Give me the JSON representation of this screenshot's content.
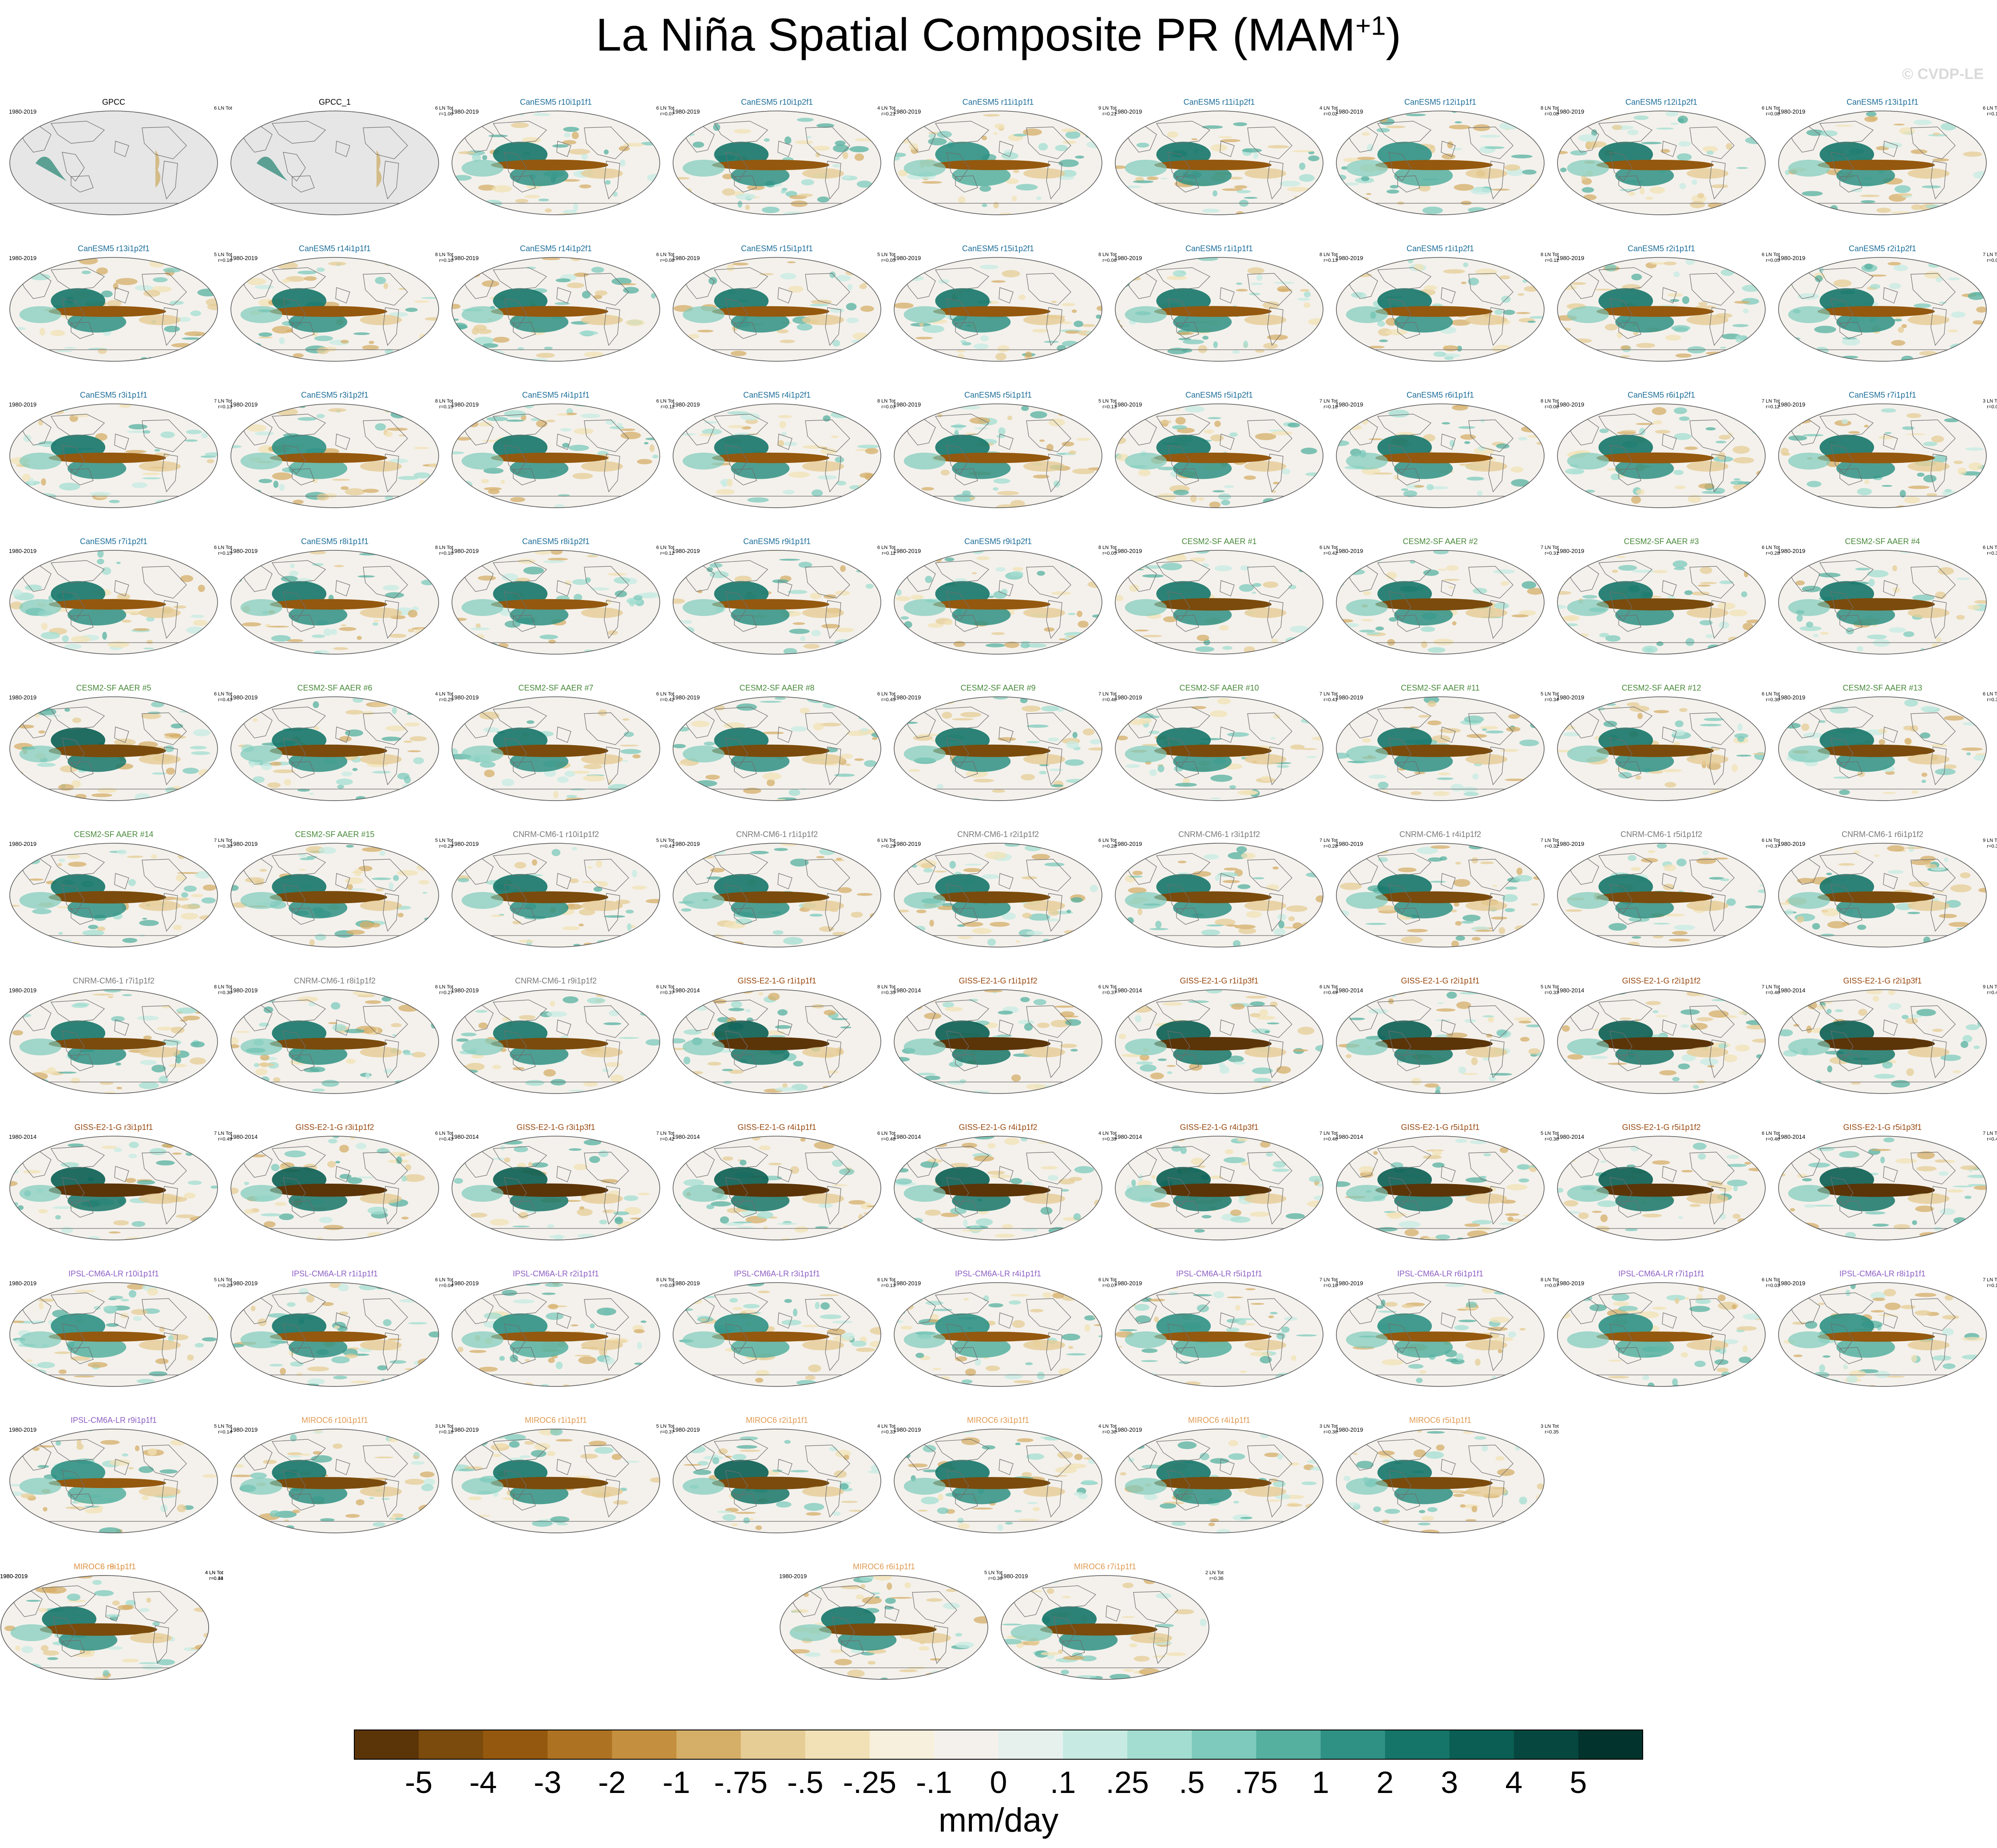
{
  "title": {
    "main": "La Niña Spatial Composite PR (MAM",
    "superscript": "+1",
    "close": ")"
  },
  "watermark": "© CVDP-LE",
  "group_colors": {
    "obs": "#000000",
    "CanESM5": "#1f6f9a",
    "CESM2-SF AAER": "#4a8a3c",
    "CNRM-CM6-1": "#7a7a7a",
    "GISS-E2-1-G": "#9a4a12",
    "IPSL-CM6A-LR": "#8e5fc4",
    "MIROC6": "#e09a52"
  },
  "chart_data": {
    "type": "heatmap",
    "title": "La Niña Spatial Composite PR (MAM+1)",
    "field": "precipitation composite anomaly",
    "projection": "global ellipse",
    "colorbar": {
      "unit": "mm/day",
      "tick_labels": [
        "-5",
        "-4",
        "-3",
        "-2",
        "-1",
        "-.75",
        "-.5",
        "-.25",
        "-.1",
        "0",
        ".1",
        ".25",
        ".5",
        ".75",
        "1",
        "2",
        "3",
        "4",
        "5"
      ],
      "colors": [
        "#5b3408",
        "#7a4b0c",
        "#94580e",
        "#ad7222",
        "#c48f3e",
        "#d5ae68",
        "#e6cc95",
        "#f2e1b6",
        "#f6f0dc",
        "#f4f1ec",
        "#e6f1ee",
        "#c7ebe3",
        "#a3ddd1",
        "#7ecabc",
        "#55b0a0",
        "#2f9184",
        "#167569",
        "#0a5e53",
        "#06473f",
        "#02332c"
      ]
    },
    "panels": [
      {
        "title": "GPCC",
        "group": "obs",
        "period": "1980-2019",
        "events": "6 LN Tot",
        "r": "",
        "enso": 0
      },
      {
        "title": "GPCC_1",
        "group": "obs",
        "period": "",
        "events": "6 LN Tot",
        "r": "r=1.00",
        "enso": 0
      },
      {
        "title": "CanESM5 r10i1p1f1",
        "group": "CanESM5",
        "period": "1980-2019",
        "events": "6 LN Tot",
        "r": "r=0.07",
        "enso": 0.55
      },
      {
        "title": "CanESM5 r10i1p2f1",
        "group": "CanESM5",
        "period": "1980-2019",
        "events": "4 LN Tot",
        "r": "r=0.21",
        "enso": 0.5
      },
      {
        "title": "CanESM5 r11i1p1f1",
        "group": "CanESM5",
        "period": "1980-2019",
        "events": "9 LN Tot",
        "r": "r=0.21",
        "enso": 0.45
      },
      {
        "title": "CanESM5 r11i1p2f1",
        "group": "CanESM5",
        "period": "1980-2019",
        "events": "4 LN Tot",
        "r": "r=0.02",
        "enso": 0.5
      },
      {
        "title": "CanESM5 r12i1p1f1",
        "group": "CanESM5",
        "period": "1980-2019",
        "events": "8 LN Tot",
        "r": "r=0.08",
        "enso": 0.45
      },
      {
        "title": "CanESM5 r12i1p2f1",
        "group": "CanESM5",
        "period": "1980-2019",
        "events": "6 LN Tot",
        "r": "r=0.08",
        "enso": 0.5
      },
      {
        "title": "CanESM5 r13i1p1f1",
        "group": "CanESM5",
        "period": "1980-2019",
        "events": "6 LN Tot",
        "r": "r=0.16",
        "enso": 0.5
      },
      {
        "title": "CanESM5 r13i1p2f1",
        "group": "CanESM5",
        "period": "1980-2019",
        "events": "5 LN Tot",
        "r": "r=0.16",
        "enso": 0.55
      },
      {
        "title": "CanESM5 r14i1p1f1",
        "group": "CanESM5",
        "period": "1980-2019",
        "events": "8 LN Tot",
        "r": "r=0.10",
        "enso": 0.55
      },
      {
        "title": "CanESM5 r14i1p2f1",
        "group": "CanESM5",
        "period": "1980-2019",
        "events": "6 LN Tot",
        "r": "r=0.08",
        "enso": 0.55
      },
      {
        "title": "CanESM5 r15i1p1f1",
        "group": "CanESM5",
        "period": "1980-2019",
        "events": "5 LN Tot",
        "r": "r=0.05",
        "enso": 0.5
      },
      {
        "title": "CanESM5 r15i1p2f1",
        "group": "CanESM5",
        "period": "1980-2019",
        "events": "8 LN Tot",
        "r": "r=0.06",
        "enso": 0.5
      },
      {
        "title": "CanESM5 r1i1p1f1",
        "group": "CanESM5",
        "period": "1980-2019",
        "events": "8 LN Tot",
        "r": "r=0.13",
        "enso": 0.55
      },
      {
        "title": "CanESM5 r1i1p2f1",
        "group": "CanESM5",
        "period": "1980-2019",
        "events": "8 LN Tot",
        "r": "r=0.11",
        "enso": 0.55
      },
      {
        "title": "CanESM5 r2i1p1f1",
        "group": "CanESM5",
        "period": "1980-2019",
        "events": "6 LN Tot",
        "r": "r=0.05",
        "enso": 0.55
      },
      {
        "title": "CanESM5 r2i1p2f1",
        "group": "CanESM5",
        "period": "1980-2019",
        "events": "7 LN Tot",
        "r": "r=0.06",
        "enso": 0.55
      },
      {
        "title": "CanESM5 r3i1p1f1",
        "group": "CanESM5",
        "period": "1980-2019",
        "events": "7 LN Tot",
        "r": "r=0.13",
        "enso": 0.5
      },
      {
        "title": "CanESM5 r3i1p2f1",
        "group": "CanESM5",
        "period": "1980-2019",
        "events": "8 LN Tot",
        "r": "r=0.15",
        "enso": 0.45
      },
      {
        "title": "CanESM5 r4i1p1f1",
        "group": "CanESM5",
        "period": "1980-2019",
        "events": "6 LN Tot",
        "r": "r=0.11",
        "enso": 0.5
      },
      {
        "title": "CanESM5 r4i1p2f1",
        "group": "CanESM5",
        "period": "1980-2019",
        "events": "8 LN Tot",
        "r": "r=0.03",
        "enso": 0.5
      },
      {
        "title": "CanESM5 r5i1p1f1",
        "group": "CanESM5",
        "period": "1980-2019",
        "events": "5 LN Tot",
        "r": "r=0.13",
        "enso": 0.5
      },
      {
        "title": "CanESM5 r5i1p2f1",
        "group": "CanESM5",
        "period": "1980-2019",
        "events": "7 LN Tot",
        "r": "r=0.18",
        "enso": 0.5
      },
      {
        "title": "CanESM5 r6i1p1f1",
        "group": "CanESM5",
        "period": "1980-2019",
        "events": "8 LN Tot",
        "r": "r=0.08",
        "enso": 0.55
      },
      {
        "title": "CanESM5 r6i1p2f1",
        "group": "CanESM5",
        "period": "1980-2019",
        "events": "7 LN Tot",
        "r": "r=0.12",
        "enso": 0.55
      },
      {
        "title": "CanESM5 r7i1p1f1",
        "group": "CanESM5",
        "period": "1980-2019",
        "events": "3 LN Tot",
        "r": "r=0.08",
        "enso": 0.55
      },
      {
        "title": "CanESM5 r7i1p2f1",
        "group": "CanESM5",
        "period": "1980-2019",
        "events": "6 LN Tot",
        "r": "r=0.15",
        "enso": 0.5
      },
      {
        "title": "CanESM5 r8i1p1f1",
        "group": "CanESM5",
        "period": "1980-2019",
        "events": "8 LN Tot",
        "r": "r=0.10",
        "enso": 0.5
      },
      {
        "title": "CanESM5 r8i1p2f1",
        "group": "CanESM5",
        "period": "1980-2019",
        "events": "6 LN Tot",
        "r": "r=0.12",
        "enso": 0.5
      },
      {
        "title": "CanESM5 r9i1p1f1",
        "group": "CanESM5",
        "period": "1980-2019",
        "events": "6 LN Tot",
        "r": "r=0.11",
        "enso": 0.5
      },
      {
        "title": "CanESM5 r9i1p2f1",
        "group": "CanESM5",
        "period": "1980-2019",
        "events": "8 LN Tot",
        "r": "r=0.05",
        "enso": 0.5
      },
      {
        "title": "CESM2-SF AAER #1",
        "group": "CESM2-SF AAER",
        "period": "1980-2019",
        "events": "6 LN Tot",
        "r": "r=0.42",
        "enso": 0.8
      },
      {
        "title": "CESM2-SF AAER #2",
        "group": "CESM2-SF AAER",
        "period": "1980-2019",
        "events": "7 LN Tot",
        "r": "r=0.31",
        "enso": 0.75
      },
      {
        "title": "CESM2-SF AAER #3",
        "group": "CESM2-SF AAER",
        "period": "1980-2019",
        "events": "6 LN Tot",
        "r": "r=0.28",
        "enso": 0.75
      },
      {
        "title": "CESM2-SF AAER #4",
        "group": "CESM2-SF AAER",
        "period": "1980-2019",
        "events": "6 LN Tot",
        "r": "r=0.38",
        "enso": 0.8
      },
      {
        "title": "CESM2-SF AAER #5",
        "group": "CESM2-SF AAER",
        "period": "1980-2019",
        "events": "6 LN Tot",
        "r": "r=0.43",
        "enso": 0.85
      },
      {
        "title": "CESM2-SF AAER #6",
        "group": "CESM2-SF AAER",
        "period": "1980-2019",
        "events": "4 LN Tot",
        "r": "r=0.25",
        "enso": 0.8
      },
      {
        "title": "CESM2-SF AAER #7",
        "group": "CESM2-SF AAER",
        "period": "1980-2019",
        "events": "6 LN Tot",
        "r": "r=0.42",
        "enso": 0.8
      },
      {
        "title": "CESM2-SF AAER #8",
        "group": "CESM2-SF AAER",
        "period": "1980-2019",
        "events": "6 LN Tot",
        "r": "r=0.45",
        "enso": 0.8
      },
      {
        "title": "CESM2-SF AAER #9",
        "group": "CESM2-SF AAER",
        "period": "1980-2019",
        "events": "7 LN Tot",
        "r": "r=0.46",
        "enso": 0.8
      },
      {
        "title": "CESM2-SF AAER #10",
        "group": "CESM2-SF AAER",
        "period": "1980-2019",
        "events": "7 LN Tot",
        "r": "r=0.41",
        "enso": 0.8
      },
      {
        "title": "CESM2-SF AAER #11",
        "group": "CESM2-SF AAER",
        "period": "1980-2019",
        "events": "5 LN Tot",
        "r": "r=0.34",
        "enso": 0.8
      },
      {
        "title": "CESM2-SF AAER #12",
        "group": "CESM2-SF AAER",
        "period": "1980-2019",
        "events": "6 LN Tot",
        "r": "r=0.30",
        "enso": 0.8
      },
      {
        "title": "CESM2-SF AAER #13",
        "group": "CESM2-SF AAER",
        "period": "1980-2019",
        "events": "6 LN Tot",
        "r": "r=0.39",
        "enso": 0.8
      },
      {
        "title": "CESM2-SF AAER #14",
        "group": "CESM2-SF AAER",
        "period": "1980-2019",
        "events": "7 LN Tot",
        "r": "r=0.30",
        "enso": 0.8
      },
      {
        "title": "CESM2-SF AAER #15",
        "group": "CESM2-SF AAER",
        "period": "1980-2019",
        "events": "5 LN Tot",
        "r": "r=0.29",
        "enso": 0.8
      },
      {
        "title": "CNRM-CM6-1 r10i1p1f2",
        "group": "CNRM-CM6-1",
        "period": "1980-2019",
        "events": "5 LN Tot",
        "r": "r=0.41",
        "enso": 0.7
      },
      {
        "title": "CNRM-CM6-1 r1i1p1f2",
        "group": "CNRM-CM6-1",
        "period": "1980-2019",
        "events": "6 LN Tot",
        "r": "r=0.29",
        "enso": 0.7
      },
      {
        "title": "CNRM-CM6-1 r2i1p1f2",
        "group": "CNRM-CM6-1",
        "period": "1980-2019",
        "events": "6 LN Tot",
        "r": "r=0.28",
        "enso": 0.7
      },
      {
        "title": "CNRM-CM6-1 r3i1p1f2",
        "group": "CNRM-CM6-1",
        "period": "1980-2019",
        "events": "7 LN Tot",
        "r": "r=0.28",
        "enso": 0.7
      },
      {
        "title": "CNRM-CM6-1 r4i1p1f2",
        "group": "CNRM-CM6-1",
        "period": "1980-2019",
        "events": "7 LN Tot",
        "r": "r=0.32",
        "enso": 0.7
      },
      {
        "title": "CNRM-CM6-1 r5i1p1f2",
        "group": "CNRM-CM6-1",
        "period": "1980-2019",
        "events": "6 LN Tot",
        "r": "r=0.37",
        "enso": 0.7
      },
      {
        "title": "CNRM-CM6-1 r6i1p1f2",
        "group": "CNRM-CM6-1",
        "period": "1980-2019",
        "events": "9 LN Tot",
        "r": "r=0.38",
        "enso": 0.7
      },
      {
        "title": "CNRM-CM6-1 r7i1p1f2",
        "group": "CNRM-CM6-1",
        "period": "1980-2019",
        "events": "8 LN Tot",
        "r": "r=0.30",
        "enso": 0.7
      },
      {
        "title": "CNRM-CM6-1 r8i1p1f2",
        "group": "CNRM-CM6-1",
        "period": "1980-2019",
        "events": "6 LN Tot",
        "r": "r=0.27",
        "enso": 0.7
      },
      {
        "title": "CNRM-CM6-1 r9i1p1f2",
        "group": "CNRM-CM6-1",
        "period": "1980-2019",
        "events": "6 LN Tot",
        "r": "r=0.37",
        "enso": 0.7
      },
      {
        "title": "GISS-E2-1-G r1i1p1f1",
        "group": "GISS-E2-1-G",
        "period": "1980-2014",
        "events": "8 LN Tot",
        "r": "r=0.35",
        "enso": 0.9
      },
      {
        "title": "GISS-E2-1-G r1i1p1f2",
        "group": "GISS-E2-1-G",
        "period": "1980-2014",
        "events": "6 LN Tot",
        "r": "r=0.37",
        "enso": 0.9
      },
      {
        "title": "GISS-E2-1-G r1i1p3f1",
        "group": "GISS-E2-1-G",
        "period": "1980-2014",
        "events": "6 LN Tot",
        "r": "r=0.49",
        "enso": 0.95
      },
      {
        "title": "GISS-E2-1-G r2i1p1f1",
        "group": "GISS-E2-1-G",
        "period": "1980-2014",
        "events": "5 LN Tot",
        "r": "r=0.33",
        "enso": 0.9
      },
      {
        "title": "GISS-E2-1-G r2i1p1f2",
        "group": "GISS-E2-1-G",
        "period": "1980-2014",
        "events": "7 LN Tot",
        "r": "r=0.46",
        "enso": 0.9
      },
      {
        "title": "GISS-E2-1-G r2i1p3f1",
        "group": "GISS-E2-1-G",
        "period": "1980-2014",
        "events": "9 LN Tot",
        "r": "r=0.47",
        "enso": 0.9
      },
      {
        "title": "GISS-E2-1-G r3i1p1f1",
        "group": "GISS-E2-1-G",
        "period": "1980-2014",
        "events": "7 LN Tot",
        "r": "r=0.49",
        "enso": 0.95
      },
      {
        "title": "GISS-E2-1-G r3i1p1f2",
        "group": "GISS-E2-1-G",
        "period": "1980-2014",
        "events": "6 LN Tot",
        "r": "r=0.43",
        "enso": 0.9
      },
      {
        "title": "GISS-E2-1-G r3i1p3f1",
        "group": "GISS-E2-1-G",
        "period": "1980-2014",
        "events": "7 LN Tot",
        "r": "r=0.42",
        "enso": 0.95
      },
      {
        "title": "GISS-E2-1-G r4i1p1f1",
        "group": "GISS-E2-1-G",
        "period": "1980-2014",
        "events": "6 LN Tot",
        "r": "r=0.48",
        "enso": 0.95
      },
      {
        "title": "GISS-E2-1-G r4i1p1f2",
        "group": "GISS-E2-1-G",
        "period": "1980-2014",
        "events": "4 LN Tot",
        "r": "r=0.39",
        "enso": 0.9
      },
      {
        "title": "GISS-E2-1-G r4i1p3f1",
        "group": "GISS-E2-1-G",
        "period": "1980-2014",
        "events": "7 LN Tot",
        "r": "r=0.46",
        "enso": 0.95
      },
      {
        "title": "GISS-E2-1-G r5i1p1f1",
        "group": "GISS-E2-1-G",
        "period": "1980-2014",
        "events": "5 LN Tot",
        "r": "r=0.36",
        "enso": 0.9
      },
      {
        "title": "GISS-E2-1-G r5i1p1f2",
        "group": "GISS-E2-1-G",
        "period": "1980-2014",
        "events": "6 LN Tot",
        "r": "r=0.46",
        "enso": 0.9
      },
      {
        "title": "GISS-E2-1-G r5i1p3f1",
        "group": "GISS-E2-1-G",
        "period": "1980-2014",
        "events": "7 LN Tot",
        "r": "r=0.47",
        "enso": 0.95
      },
      {
        "title": "IPSL-CM6A-LR r10i1p1f1",
        "group": "IPSL-CM6A-LR",
        "period": "1980-2019",
        "events": "5 LN Tot",
        "r": "r=0.20",
        "enso": 0.45
      },
      {
        "title": "IPSL-CM6A-LR r1i1p1f1",
        "group": "IPSL-CM6A-LR",
        "period": "1980-2019",
        "events": "6 LN Tot",
        "r": "r=0.04",
        "enso": 0.5
      },
      {
        "title": "IPSL-CM6A-LR r2i1p1f1",
        "group": "IPSL-CM6A-LR",
        "period": "1980-2019",
        "events": "8 LN Tot",
        "r": "r=0.03",
        "enso": 0.4
      },
      {
        "title": "IPSL-CM6A-LR r3i1p1f1",
        "group": "IPSL-CM6A-LR",
        "period": "1980-2019",
        "events": "6 LN Tot",
        "r": "r=0.13",
        "enso": 0.45
      },
      {
        "title": "IPSL-CM6A-LR r4i1p1f1",
        "group": "IPSL-CM6A-LR",
        "period": "1980-2019",
        "events": "6 LN Tot",
        "r": "r=0.07",
        "enso": 0.4
      },
      {
        "title": "IPSL-CM6A-LR r5i1p1f1",
        "group": "IPSL-CM6A-LR",
        "period": "1980-2019",
        "events": "7 LN Tot",
        "r": "r=0.10",
        "enso": 0.45
      },
      {
        "title": "IPSL-CM6A-LR r6i1p1f1",
        "group": "IPSL-CM6A-LR",
        "period": "1980-2019",
        "events": "8 LN Tot",
        "r": "r=0.07",
        "enso": 0.45
      },
      {
        "title": "IPSL-CM6A-LR r7i1p1f1",
        "group": "IPSL-CM6A-LR",
        "period": "1980-2019",
        "events": "6 LN Tot",
        "r": "r=0.03",
        "enso": 0.45
      },
      {
        "title": "IPSL-CM6A-LR r8i1p1f1",
        "group": "IPSL-CM6A-LR",
        "period": "1980-2019",
        "events": "7 LN Tot",
        "r": "r=0.17",
        "enso": 0.45
      },
      {
        "title": "IPSL-CM6A-LR r9i1p1f1",
        "group": "IPSL-CM6A-LR",
        "period": "1980-2019",
        "events": "5 LN Tot",
        "r": "r=0.14",
        "enso": 0.4
      },
      {
        "title": "MIROC6 r10i1p1f1",
        "group": "MIROC6",
        "period": "1980-2019",
        "events": "3 LN Tot",
        "r": "r=0.18",
        "enso": 0.75
      },
      {
        "title": "MIROC6 r1i1p1f1",
        "group": "MIROC6",
        "period": "1980-2019",
        "events": "5 LN Tot",
        "r": "r=0.37",
        "enso": 0.8
      },
      {
        "title": "MIROC6 r2i1p1f1",
        "group": "MIROC6",
        "period": "1980-2019",
        "events": "4 LN Tot",
        "r": "r=0.33",
        "enso": 0.85
      },
      {
        "title": "MIROC6 r3i1p1f1",
        "group": "MIROC6",
        "period": "1980-2019",
        "events": "4 LN Tot",
        "r": "r=0.30",
        "enso": 0.75
      },
      {
        "title": "MIROC6 r4i1p1f1",
        "group": "MIROC6",
        "period": "1980-2019",
        "events": "3 LN Tot",
        "r": "r=0.30",
        "enso": 0.8
      },
      {
        "title": "MIROC6 r5i1p1f1",
        "group": "MIROC6",
        "period": "1980-2019",
        "events": "3 LN Tot",
        "r": "r=0.35",
        "enso": 0.75
      },
      {
        "title": "MIROC6 r6i1p1f1",
        "group": "MIROC6",
        "period": "1980-2019",
        "events": "5 LN Tot",
        "r": "r=0.36",
        "enso": 0.8
      },
      {
        "title": "MIROC6 r7i1p1f1",
        "group": "MIROC6",
        "period": "1980-2019",
        "events": "2 LN Tot",
        "r": "r=0.36",
        "enso": 0.75
      },
      {
        "title": "MIROC6 r8i1p1f1",
        "group": "MIROC6",
        "period": "1980-2019",
        "events": "4 LN Tot",
        "r": "r=0.34",
        "enso": 0.8
      },
      {
        "title": "MIROC6 r9i1p1f1",
        "group": "MIROC6",
        "period": "1980-2019",
        "events": "4 LN Tot",
        "r": "r=0.43",
        "enso": 0.8
      }
    ]
  }
}
